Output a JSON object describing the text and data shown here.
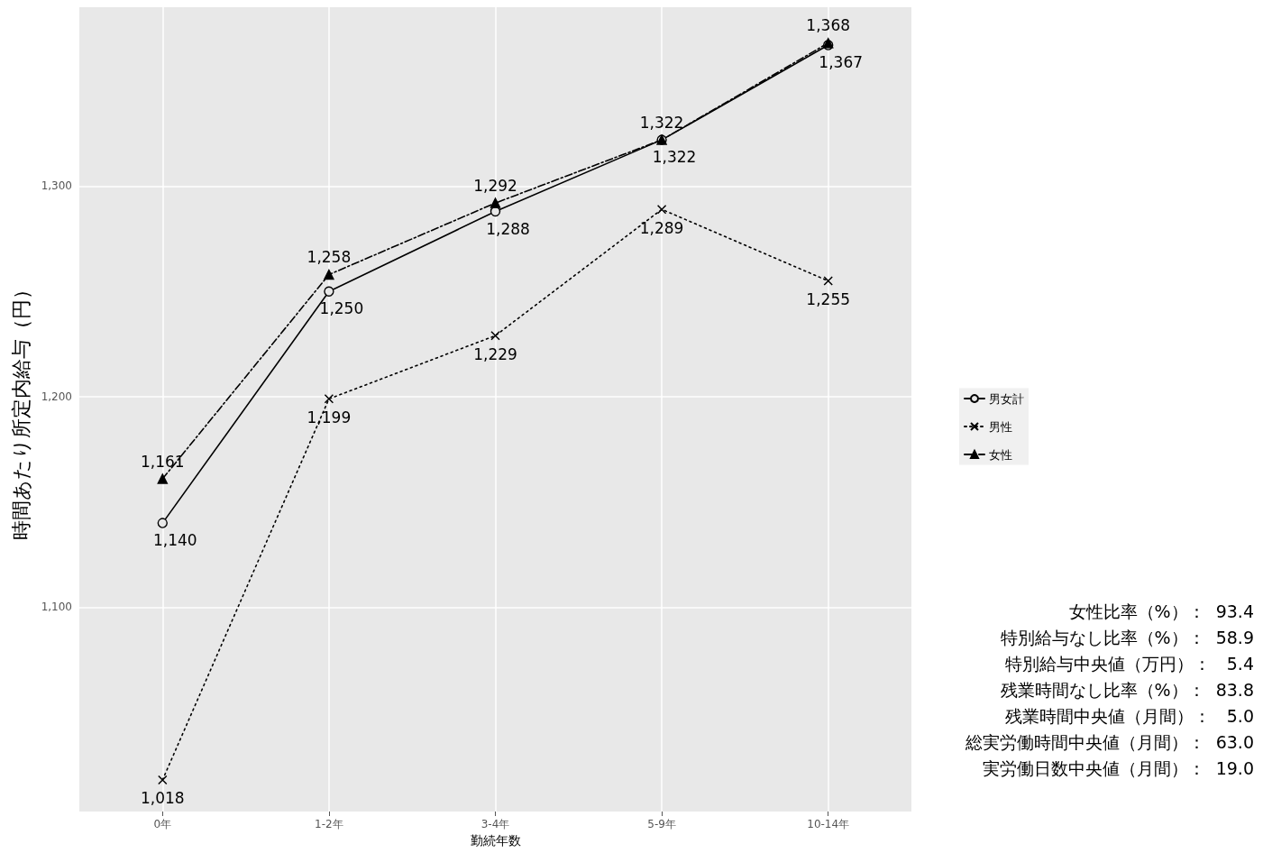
{
  "chart_data": {
    "type": "line",
    "xlabel": "勤続年数",
    "ylabel": "時間あたり所定内給与（円）",
    "categories": [
      "0年",
      "1-2年",
      "3-4年",
      "5-9年",
      "10-14年"
    ],
    "series": [
      {
        "name": "男女計",
        "color": "#000000",
        "marker": "circle",
        "line_style": "solid",
        "values": [
          1140,
          1250,
          1288,
          1322,
          1367
        ],
        "value_labels": [
          "1,140",
          "1,250",
          "1,288",
          "1,322",
          "1,367"
        ]
      },
      {
        "name": "男性",
        "color": "#000000",
        "marker": "cross",
        "line_style": "dotted",
        "values": [
          1018,
          1199,
          1229,
          1289,
          1255
        ],
        "value_labels": [
          "1,018",
          "1,199",
          "1,229",
          "1,289",
          "1,255"
        ]
      },
      {
        "name": "女性",
        "color": "#000000",
        "marker": "triangle",
        "line_style": "dashed",
        "values": [
          1161,
          1258,
          1292,
          1322,
          1368
        ],
        "value_labels": [
          "1,161",
          "1,258",
          "1,292",
          "1,322",
          "1,368"
        ]
      }
    ],
    "ylim": [
      1003,
      1385
    ],
    "yticks": [
      {
        "value": 1100,
        "label": "1,100"
      },
      {
        "value": 1200,
        "label": "1,200"
      },
      {
        "value": 1300,
        "label": "1,300"
      }
    ],
    "grid": true,
    "legend": "right",
    "annotations": [
      "女性比率（%）：  93.4",
      "特別給与なし比率（%）：  58.9",
      "特別給与中央値（万円）：   5.4",
      "残業時間なし比率（%）：  83.8",
      "残業時間中央値（月間）：   5.0",
      "総実労働時間中央値（月間）：  63.0",
      "実労働日数中央値（月間）：  19.0"
    ]
  }
}
